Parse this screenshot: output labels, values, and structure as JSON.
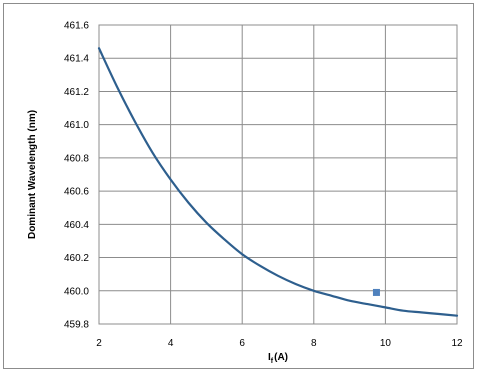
{
  "chart_data": {
    "type": "line",
    "title": "",
    "xlabel": "I",
    "xlabel_subscript": "f",
    "xlabel_unit": "(A)",
    "ylabel": "Dominant Wavelength (nm)",
    "xlim": [
      2,
      12
    ],
    "ylim": [
      459.8,
      461.6
    ],
    "x_ticks": [
      2,
      4,
      6,
      8,
      10,
      12
    ],
    "y_ticks": [
      459.8,
      460.0,
      460.2,
      460.4,
      460.6,
      460.8,
      461.0,
      461.2,
      461.4,
      461.6
    ],
    "x_tick_labels": [
      "2",
      "4",
      "6",
      "8",
      "10",
      "12"
    ],
    "y_tick_labels": [
      "459.8",
      "460.0",
      "460.2",
      "460.4",
      "460.6",
      "460.8",
      "461.0",
      "461.2",
      "461.4",
      "461.6"
    ],
    "grid": true,
    "legend": "none",
    "series": [
      {
        "x": [
          2.0,
          2.5,
          3.0,
          3.5,
          4.0,
          4.5,
          5.0,
          5.5,
          6.0,
          6.5,
          7.0,
          7.5,
          8.0,
          8.5,
          9.0,
          9.5,
          10.0,
          10.5,
          11.0,
          11.5,
          12.0
        ],
        "y": [
          461.46,
          461.23,
          461.02,
          460.83,
          460.67,
          460.53,
          460.41,
          460.31,
          460.22,
          460.15,
          460.09,
          460.04,
          460.0,
          459.97,
          459.94,
          459.92,
          459.9,
          459.88,
          459.87,
          459.86,
          459.85
        ],
        "color": "#2e5f8e"
      }
    ],
    "markers": [
      {
        "x": 9.75,
        "y": 459.99,
        "color": "#4f81bd"
      }
    ]
  }
}
